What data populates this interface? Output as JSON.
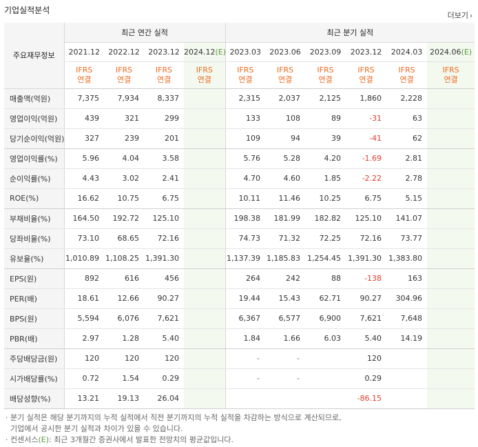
{
  "header": {
    "title": "기업실적분석",
    "more_label": "더보기"
  },
  "table": {
    "label_header": "주요재무정보",
    "group_annual": "최근 연간 실적",
    "group_quarter": "최근 분기 실적",
    "annual_periods": [
      "2021.12",
      "2022.12",
      "2023.12",
      "2024.12"
    ],
    "annual_estimate_suffix": "(E)",
    "quarter_periods": [
      "2023.03",
      "2023.06",
      "2023.09",
      "2023.12",
      "2024.03",
      "2024.06"
    ],
    "quarter_estimate_suffix": "(E)",
    "ifrs_top": "IFRS",
    "ifrs_bottom": "연결",
    "rows": [
      {
        "label": "매출액(억원)",
        "annual": [
          "7,375",
          "7,934",
          "8,337",
          ""
        ],
        "quarter": [
          "2,315",
          "2,037",
          "2,125",
          "1,860",
          "2,228",
          ""
        ]
      },
      {
        "label": "영업이익(억원)",
        "annual": [
          "439",
          "321",
          "299",
          ""
        ],
        "quarter": [
          "133",
          "108",
          "89",
          "-31",
          "63",
          ""
        ]
      },
      {
        "label": "당기순이익(억원)",
        "annual": [
          "327",
          "239",
          "201",
          ""
        ],
        "quarter": [
          "109",
          "94",
          "39",
          "-41",
          "62",
          ""
        ]
      },
      {
        "label": "영업이익률(%)",
        "annual": [
          "5.96",
          "4.04",
          "3.58",
          ""
        ],
        "quarter": [
          "5.76",
          "5.28",
          "4.20",
          "-1.69",
          "2.81",
          ""
        ]
      },
      {
        "label": "순이익률(%)",
        "annual": [
          "4.43",
          "3.02",
          "2.41",
          ""
        ],
        "quarter": [
          "4.70",
          "4.60",
          "1.85",
          "-2.22",
          "2.78",
          ""
        ]
      },
      {
        "label": "ROE(%)",
        "annual": [
          "16.62",
          "10.75",
          "6.75",
          ""
        ],
        "quarter": [
          "10.11",
          "11.46",
          "10.25",
          "6.75",
          "5.15",
          ""
        ]
      },
      {
        "label": "부채비율(%)",
        "annual": [
          "164.50",
          "192.72",
          "125.10",
          ""
        ],
        "quarter": [
          "198.38",
          "181.99",
          "182.82",
          "125.10",
          "141.07",
          ""
        ]
      },
      {
        "label": "당좌비율(%)",
        "annual": [
          "73.10",
          "68.65",
          "72.16",
          ""
        ],
        "quarter": [
          "74.73",
          "71.32",
          "72.25",
          "72.16",
          "73.77",
          ""
        ]
      },
      {
        "label": "유보율(%)",
        "annual": [
          "1,010.89",
          "1,108.25",
          "1,391.30",
          ""
        ],
        "quarter": [
          "1,137.39",
          "1,185.83",
          "1,254.45",
          "1,391.30",
          "1,383.80",
          ""
        ]
      },
      {
        "label": "EPS(원)",
        "annual": [
          "892",
          "616",
          "456",
          ""
        ],
        "quarter": [
          "264",
          "242",
          "88",
          "-138",
          "163",
          ""
        ]
      },
      {
        "label": "PER(배)",
        "annual": [
          "18.61",
          "12.66",
          "90.27",
          ""
        ],
        "quarter": [
          "19.44",
          "15.43",
          "62.71",
          "90.27",
          "304.96",
          ""
        ]
      },
      {
        "label": "BPS(원)",
        "annual": [
          "5,594",
          "6,076",
          "7,621",
          ""
        ],
        "quarter": [
          "6,367",
          "6,577",
          "6,900",
          "7,621",
          "7,648",
          ""
        ]
      },
      {
        "label": "PBR(배)",
        "annual": [
          "2.97",
          "1.28",
          "5.40",
          ""
        ],
        "quarter": [
          "1.84",
          "1.66",
          "6.03",
          "5.40",
          "14.19",
          ""
        ]
      },
      {
        "label": "주당배당금(원)",
        "annual": [
          "120",
          "120",
          "120",
          ""
        ],
        "quarter": [
          "-",
          "-",
          "",
          "120",
          "",
          ""
        ]
      },
      {
        "label": "시가배당률(%)",
        "annual": [
          "0.72",
          "1.54",
          "0.29",
          ""
        ],
        "quarter": [
          "-",
          "-",
          "",
          "0.29",
          "",
          ""
        ]
      },
      {
        "label": "배당성향(%)",
        "annual": [
          "13.21",
          "19.13",
          "26.04",
          ""
        ],
        "quarter": [
          "",
          "",
          "",
          "-86.15",
          "",
          ""
        ]
      }
    ]
  },
  "notes": {
    "line1": "분기 실적은 해당 분기까지의 누적 실적에서 직전 분기까지의 누적 실적을 차감하는 방식으로 계산되므로,",
    "line2": "기업에서 공시한 분기 실적과 차이가 있을 수 있습니다.",
    "line3_prefix": "컨센서스",
    "line3_mark": "(E)",
    "line3_suffix": ": 최근 3개월간 증권사에서 발표한 전망치의 평균값입니다."
  },
  "colors": {
    "accent_orange": "#ee6a1f",
    "negative_red": "#e03c2d",
    "estimate_bg": "#f3f9ef",
    "estimate_mark": "#5a9a3a"
  }
}
